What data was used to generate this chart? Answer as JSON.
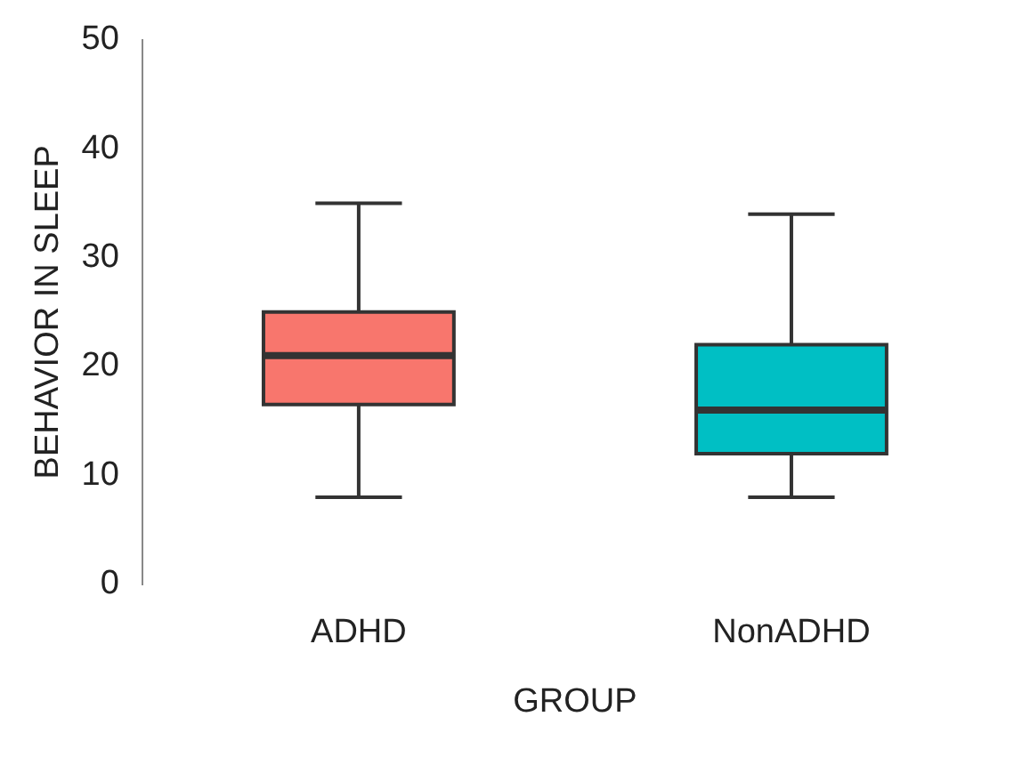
{
  "chart_data": {
    "type": "box",
    "xlabel": "GROUP",
    "ylabel": "BEHAVIOR IN SLEEP",
    "categories": [
      "ADHD",
      "NonADHD"
    ],
    "colors": [
      "#f8766d",
      "#00bfc4"
    ],
    "boxes": [
      {
        "low": 8,
        "q1": 16.5,
        "median": 21,
        "q3": 25,
        "high": 35
      },
      {
        "low": 8,
        "q1": 12,
        "median": 16,
        "q3": 22,
        "high": 34
      }
    ],
    "ylim": [
      0,
      50
    ],
    "yticks": [
      0,
      10,
      20,
      30,
      40,
      50
    ],
    "grid": false,
    "legend": false
  }
}
